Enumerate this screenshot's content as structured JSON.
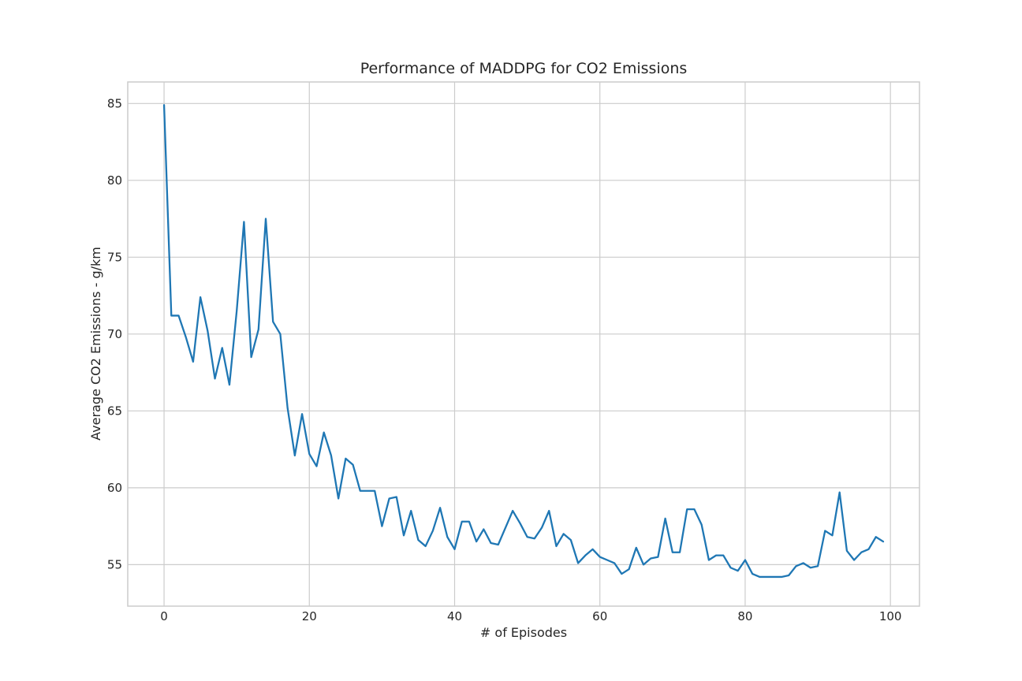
{
  "chart_data": {
    "type": "line",
    "title": "Performance of MADDPG for CO2 Emissions",
    "xlabel": "# of Episodes",
    "ylabel": "Average CO2 Emissions - g/km",
    "xlim": [
      -5,
      104
    ],
    "ylim": [
      52.3,
      86.4
    ],
    "xticks": [
      0,
      20,
      40,
      60,
      80,
      100
    ],
    "yticks": [
      55,
      60,
      65,
      70,
      75,
      80,
      85
    ],
    "grid": true,
    "legend": "none",
    "series": [
      {
        "color": "#1f77b4",
        "x": [
          0,
          1,
          2,
          3,
          4,
          5,
          6,
          7,
          8,
          9,
          10,
          11,
          12,
          13,
          14,
          15,
          16,
          17,
          18,
          19,
          20,
          21,
          22,
          23,
          24,
          25,
          26,
          27,
          28,
          29,
          30,
          31,
          32,
          33,
          34,
          35,
          36,
          37,
          38,
          39,
          40,
          41,
          42,
          43,
          44,
          45,
          46,
          47,
          48,
          49,
          50,
          51,
          52,
          53,
          54,
          55,
          56,
          57,
          58,
          59,
          60,
          61,
          62,
          63,
          64,
          65,
          66,
          67,
          68,
          69,
          70,
          71,
          72,
          73,
          74,
          75,
          76,
          77,
          78,
          79,
          80,
          81,
          82,
          83,
          84,
          85,
          86,
          87,
          88,
          89,
          90,
          91,
          92,
          93,
          94,
          95,
          96,
          97,
          98,
          99
        ],
        "y": [
          84.9,
          71.2,
          71.2,
          69.8,
          68.2,
          72.4,
          70.2,
          67.1,
          69.1,
          66.7,
          71.5,
          77.3,
          68.5,
          70.3,
          77.5,
          70.8,
          70.0,
          65.2,
          62.1,
          64.8,
          62.2,
          61.4,
          63.6,
          62.1,
          59.3,
          61.9,
          61.5,
          59.8,
          59.8,
          59.8,
          57.5,
          59.3,
          59.4,
          56.9,
          58.5,
          56.6,
          56.2,
          57.2,
          58.7,
          56.8,
          56.0,
          57.8,
          57.8,
          56.5,
          57.3,
          56.4,
          56.3,
          57.4,
          58.5,
          57.7,
          56.8,
          56.7,
          57.4,
          58.5,
          56.2,
          57.0,
          56.6,
          55.1,
          55.6,
          56.0,
          55.5,
          55.3,
          55.1,
          54.4,
          54.7,
          56.1,
          55.0,
          55.4,
          55.5,
          58.0,
          55.8,
          55.8,
          58.6,
          58.6,
          57.6,
          55.3,
          55.6,
          55.6,
          54.8,
          54.6,
          55.3,
          54.4,
          54.2,
          54.2,
          54.2,
          54.2,
          54.3,
          54.9,
          55.1,
          54.8,
          54.9,
          57.2,
          56.9,
          59.7,
          55.9,
          55.3,
          55.8,
          56.0,
          56.8,
          56.5
        ]
      }
    ]
  },
  "style": {
    "background": "#ffffff",
    "grid_color": "#cccccc",
    "spine_color": "#cccccc",
    "line_color": "#1f77b4",
    "text_color": "#262626"
  }
}
